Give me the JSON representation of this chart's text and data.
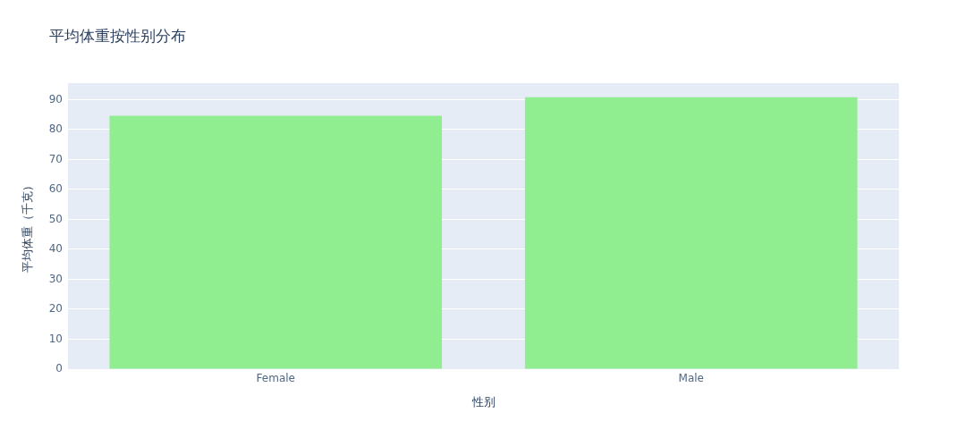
{
  "chart_data": {
    "type": "bar",
    "title": "平均体重按性别分布",
    "xlabel": "性别",
    "ylabel": "平均体重（千克）",
    "categories": [
      "Female",
      "Male"
    ],
    "values": [
      84.6,
      90.8
    ],
    "color": "#90ee90",
    "ylim": [
      0,
      95.5
    ],
    "yticks": [
      0,
      10,
      20,
      30,
      40,
      50,
      60,
      70,
      80,
      90
    ],
    "grid": "y"
  }
}
